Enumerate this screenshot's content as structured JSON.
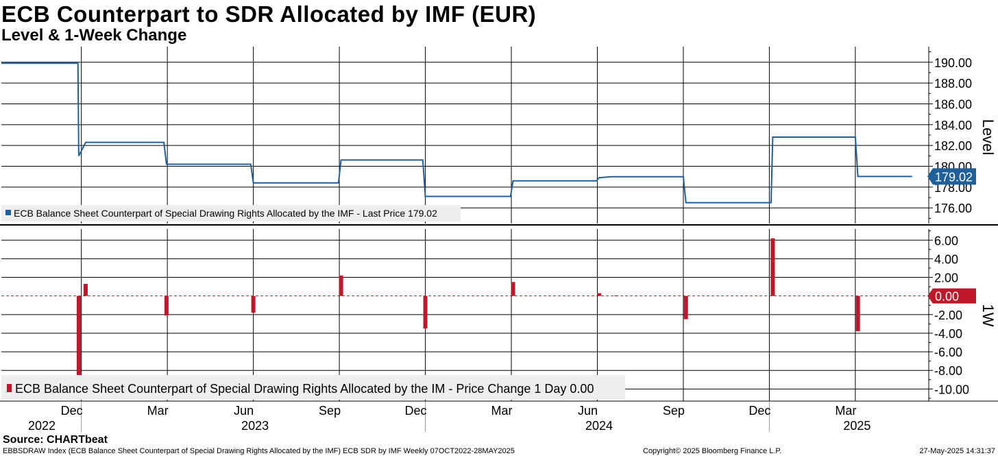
{
  "title": "ECB Counterpart to SDR Allocated by IMF (EUR)",
  "subtitle": "Level & 1-Week Change",
  "source": "Source: CHARTbeat",
  "footer": {
    "left": "EBBSDRAW Index (ECB Balance Sheet Counterpart of Special Drawing Rights Allocated by the IMF) ECB SDR by IMF  Weekly 07OCT2022-28MAY2025",
    "center": "Copyright© 2025 Bloomberg Finance L.P.",
    "right": "27-May-2025 14:31:37"
  },
  "colors": {
    "level": "#1f5f9c",
    "change": "#c0172a",
    "badge_level": "#1f5f9c",
    "badge_change": "#c0172a"
  },
  "chart_data": [
    {
      "type": "line",
      "title": "ECB Counterpart to SDR Allocated by IMF (EUR)",
      "ylabel": "Level",
      "ylim": [
        174.5,
        191.5
      ],
      "yticks": [
        176,
        178,
        180,
        182,
        184,
        186,
        188,
        190
      ],
      "ytick_labels": [
        "176.00",
        "178.00",
        "180.00",
        "182.00",
        "184.00",
        "186.00",
        "188.00",
        "190.00"
      ],
      "legend": "ECB Balance Sheet Counterpart of Special Drawing Rights Allocated by the IMF - Last Price 179.02",
      "last_value_label": "179.02",
      "series": [
        {
          "name": "ECB Balance Sheet Counterpart of Special Drawing Rights Allocated by the IMF",
          "x": [
            0,
            8.9,
            9.0,
            9.8,
            18.9,
            19.2,
            29.0,
            29.3,
            39.2,
            39.5,
            49.0,
            49.3,
            59.2,
            59.5,
            69.2,
            69.5,
            71.0,
            79.3,
            79.6,
            89.5,
            89.7,
            99.3,
            99.6,
            105.9
          ],
          "values": [
            189.9,
            189.9,
            181.0,
            182.3,
            182.3,
            180.2,
            180.2,
            178.4,
            178.4,
            180.6,
            180.6,
            177.1,
            177.1,
            178.6,
            178.6,
            178.9,
            179.0,
            179.0,
            176.5,
            176.5,
            182.8,
            182.8,
            179.02,
            179.02
          ]
        }
      ]
    },
    {
      "type": "bar",
      "title": "Level & 1-Week Change",
      "ylabel": "1W",
      "ylim": [
        -11.3,
        7.2
      ],
      "yticks": [
        -10,
        -8,
        -6,
        -4,
        -2,
        0,
        2,
        4,
        6
      ],
      "ytick_labels": [
        "-10.00",
        "-8.00",
        "-6.00",
        "-4.00",
        "-2.00",
        "0.00",
        "2.00",
        "4.00",
        "6.00"
      ],
      "legend": "ECB Balance Sheet Counterpart of Special Drawing Rights Allocated by the IM - Price Change 1 Day 0.00",
      "last_value_label": "0.00",
      "series": [
        {
          "name": "ECB Balance Sheet Counterpart of Special Drawing Rights Allocated by the IM - Price Change 1 Day",
          "x": [
            9.0,
            9.8,
            19.2,
            29.3,
            39.5,
            49.3,
            59.5,
            69.5,
            71.5,
            79.6,
            89.7,
            99.6
          ],
          "values": [
            -8.9,
            1.3,
            -2.1,
            -1.8,
            2.2,
            -3.5,
            1.5,
            0.3,
            0.05,
            -2.5,
            6.2,
            -3.8
          ]
        }
      ]
    }
  ],
  "x_axis": {
    "x_range": [
      0,
      107.6
    ],
    "month_ticks": [
      9.3,
      19.3,
      29.3,
      39.3,
      49.3,
      59.3,
      69.3,
      79.3,
      89.3,
      99.3
    ],
    "month_labels": [
      "Dec",
      "Mar",
      "Jun",
      "Sep",
      "Dec",
      "Mar",
      "Jun",
      "Sep",
      "Dec",
      "Mar"
    ],
    "year_labels": [
      "2022",
      "2023",
      "2024",
      "2025"
    ],
    "year_label_x": [
      4.7,
      29.5,
      69.5,
      99.5
    ],
    "year_separators": [
      9.3,
      49.3,
      89.3
    ]
  }
}
